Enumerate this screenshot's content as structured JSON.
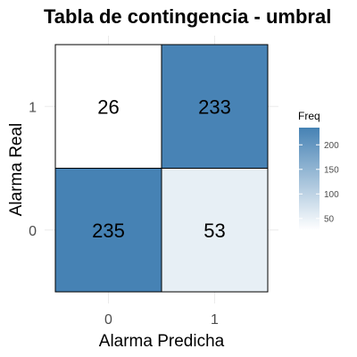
{
  "chart_data": {
    "type": "heatmap",
    "title": "Tabla de contingencia - umbral",
    "xlabel": "Alarma Predicha",
    "ylabel": "Alarma Real",
    "x_categories": [
      "0",
      "1"
    ],
    "y_categories": [
      "0",
      "1"
    ],
    "cells": [
      {
        "x": "0",
        "y": "1",
        "value": 26
      },
      {
        "x": "1",
        "y": "1",
        "value": 233
      },
      {
        "x": "0",
        "y": "0",
        "value": 235
      },
      {
        "x": "1",
        "y": "0",
        "value": 53
      }
    ],
    "legend": {
      "title": "Freq",
      "ticks": [
        50,
        100,
        150,
        200
      ],
      "tick_labels": [
        "50",
        "100",
        "150",
        "200"
      ],
      "range": [
        26,
        235
      ],
      "placement": "right"
    },
    "colors": {
      "low": "#ffffff",
      "high": "#4682b4",
      "grid": "#ebebeb",
      "border": "#000000"
    },
    "grid": true
  }
}
